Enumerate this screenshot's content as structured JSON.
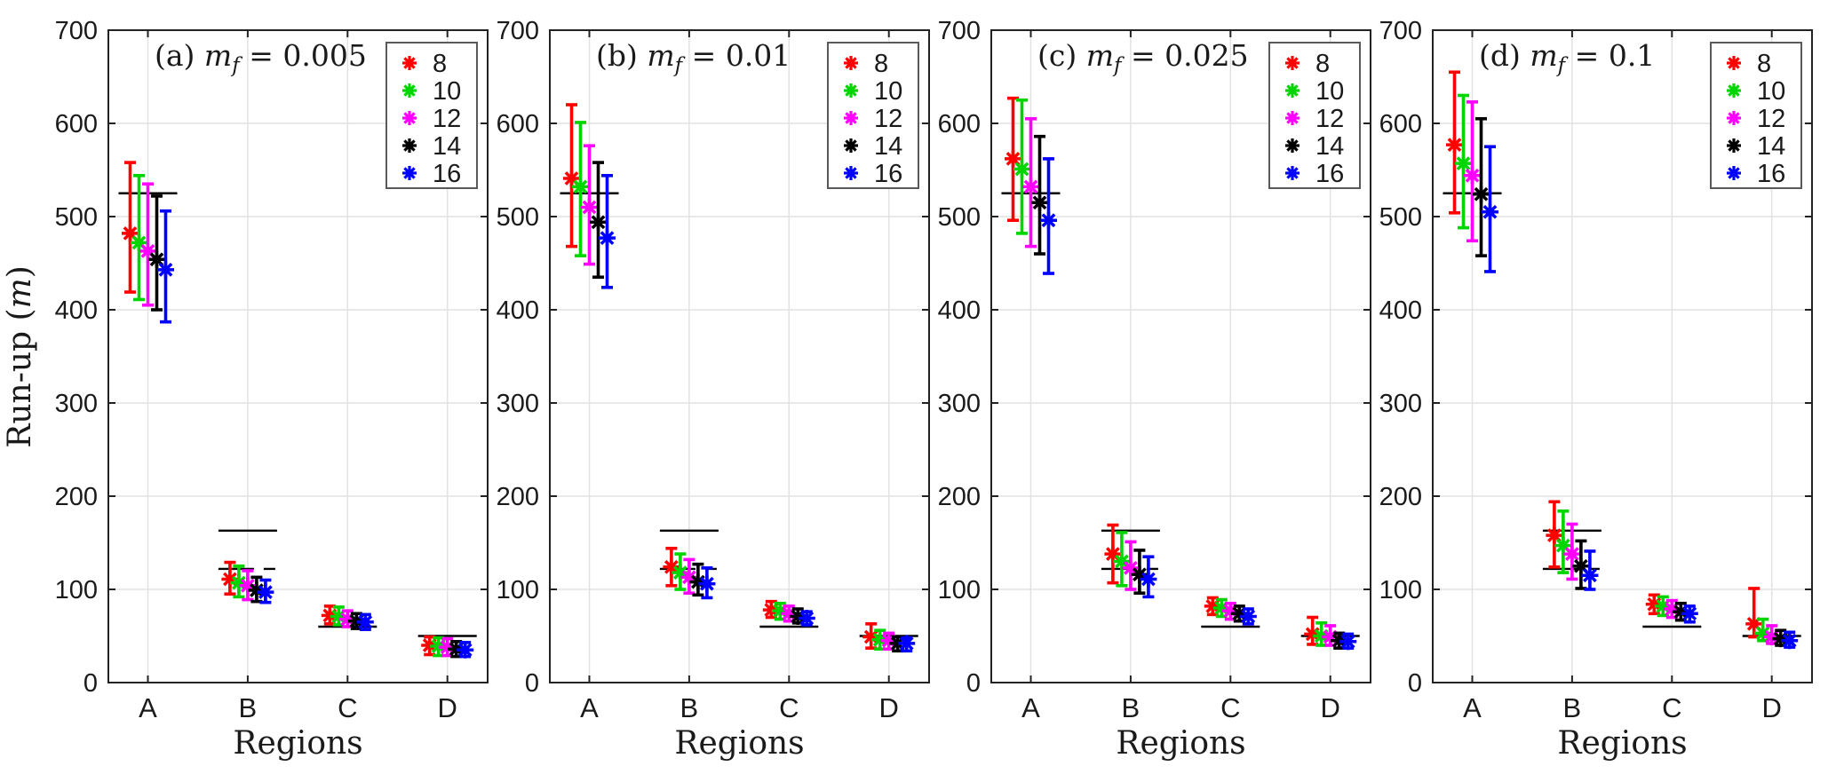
{
  "figure": {
    "xlabel": "Regions",
    "ylabel": {
      "text": "Run-up (m)",
      "prefix": "Run-up (",
      "italic_var": "m",
      "suffix": ")"
    },
    "ylim": [
      0,
      700
    ],
    "yticks": [
      0,
      100,
      200,
      300,
      400,
      500,
      600,
      700
    ],
    "categories": [
      "A",
      "B",
      "C",
      "D"
    ],
    "grid": true,
    "marker": "asterisk",
    "axis_color": "#222222",
    "grid_color": "#e2e2e2",
    "reference_color": "#000000",
    "background": "#ffffff",
    "legend": {
      "position": "top-right-inside",
      "border_color": "#595959",
      "entries": [
        {
          "label": "8",
          "color": "#ff0000"
        },
        {
          "label": "10",
          "color": "#00d500"
        },
        {
          "label": "12",
          "color": "#ff00ff"
        },
        {
          "label": "14",
          "color": "#000000"
        },
        {
          "label": "16",
          "color": "#0000ff"
        }
      ]
    },
    "reference_lines": [
      {
        "category": "A",
        "value": 525,
        "style": "solid"
      },
      {
        "category": "B",
        "value": 163,
        "style": "solid"
      },
      {
        "category": "B",
        "value": 122,
        "style": "dashed"
      },
      {
        "category": "C",
        "value": 60,
        "style": "solid"
      },
      {
        "category": "D",
        "value": 50,
        "style": "solid"
      }
    ]
  },
  "chart_data": [
    {
      "id": "a",
      "type": "scatter-errorbar",
      "title_text": "(a) m_f = 0.005",
      "title": {
        "label": "(a)",
        "var": "m",
        "sub": "f",
        "eq": "= 0.005"
      },
      "categories": [
        "A",
        "B",
        "C",
        "D"
      ],
      "series": [
        {
          "name": "8",
          "color": "#ff0000",
          "means": [
            482,
            111,
            72,
            40
          ],
          "err_lo": [
            419,
            95,
            63,
            30
          ],
          "err_hi": [
            558,
            129,
            82,
            49
          ]
        },
        {
          "name": "10",
          "color": "#00d500",
          "means": [
            472,
            107,
            71,
            39
          ],
          "err_lo": [
            411,
            92,
            62,
            29
          ],
          "err_hi": [
            544,
            125,
            81,
            48
          ]
        },
        {
          "name": "12",
          "color": "#ff00ff",
          "means": [
            463,
            104,
            68,
            38
          ],
          "err_lo": [
            405,
            89,
            60,
            29
          ],
          "err_hi": [
            535,
            120,
            77,
            47
          ]
        },
        {
          "name": "14",
          "color": "#000000",
          "means": [
            454,
            99,
            66,
            36
          ],
          "err_lo": [
            400,
            87,
            58,
            28
          ],
          "err_hi": [
            522,
            113,
            74,
            44
          ]
        },
        {
          "name": "16",
          "color": "#0000ff",
          "means": [
            443,
            97,
            65,
            35
          ],
          "err_lo": [
            387,
            86,
            57,
            28
          ],
          "err_hi": [
            506,
            110,
            73,
            43
          ]
        }
      ]
    },
    {
      "id": "b",
      "type": "scatter-errorbar",
      "title_text": "(b) m_f = 0.01",
      "title": {
        "label": "(b)",
        "var": "m",
        "sub": "f",
        "eq": "= 0.01"
      },
      "categories": [
        "A",
        "B",
        "C",
        "D"
      ],
      "series": [
        {
          "name": "8",
          "color": "#ff0000",
          "means": [
            541,
            124,
            78,
            49
          ],
          "err_lo": [
            468,
            104,
            70,
            37
          ],
          "err_hi": [
            620,
            144,
            87,
            63
          ]
        },
        {
          "name": "10",
          "color": "#00d500",
          "means": [
            532,
            118,
            77,
            46
          ],
          "err_lo": [
            458,
            100,
            68,
            36
          ],
          "err_hi": [
            601,
            138,
            85,
            56
          ]
        },
        {
          "name": "12",
          "color": "#ff00ff",
          "means": [
            510,
            113,
            74,
            45
          ],
          "err_lo": [
            449,
            96,
            66,
            36
          ],
          "err_hi": [
            576,
            132,
            82,
            53
          ]
        },
        {
          "name": "14",
          "color": "#000000",
          "means": [
            494,
            108,
            71,
            42
          ],
          "err_lo": [
            435,
            94,
            64,
            34
          ],
          "err_hi": [
            558,
            127,
            79,
            49
          ]
        },
        {
          "name": "16",
          "color": "#0000ff",
          "means": [
            477,
            106,
            69,
            42
          ],
          "err_lo": [
            424,
            91,
            62,
            34
          ],
          "err_hi": [
            544,
            123,
            76,
            48
          ]
        }
      ]
    },
    {
      "id": "c",
      "type": "scatter-errorbar",
      "title_text": "(c) m_f = 0.025",
      "title": {
        "label": "(c)",
        "var": "m",
        "sub": "f",
        "eq": "= 0.025"
      },
      "categories": [
        "A",
        "B",
        "C",
        "D"
      ],
      "series": [
        {
          "name": "8",
          "color": "#ff0000",
          "means": [
            562,
            138,
            82,
            52
          ],
          "err_lo": [
            496,
            107,
            73,
            41
          ],
          "err_hi": [
            627,
            169,
            91,
            70
          ]
        },
        {
          "name": "10",
          "color": "#00d500",
          "means": [
            551,
            130,
            80,
            50
          ],
          "err_lo": [
            482,
            104,
            71,
            40
          ],
          "err_hi": [
            625,
            161,
            89,
            64
          ]
        },
        {
          "name": "12",
          "color": "#ff00ff",
          "means": [
            532,
            123,
            77,
            49
          ],
          "err_lo": [
            468,
            100,
            68,
            40
          ],
          "err_hi": [
            605,
            151,
            85,
            61
          ]
        },
        {
          "name": "14",
          "color": "#000000",
          "means": [
            515,
            116,
            74,
            45
          ],
          "err_lo": [
            460,
            96,
            66,
            37
          ],
          "err_hi": [
            586,
            142,
            82,
            53
          ]
        },
        {
          "name": "16",
          "color": "#0000ff",
          "means": [
            496,
            111,
            71,
            44
          ],
          "err_lo": [
            439,
            92,
            63,
            37
          ],
          "err_hi": [
            562,
            135,
            79,
            52
          ]
        }
      ]
    },
    {
      "id": "d",
      "type": "scatter-errorbar",
      "title_text": "(d) m_f = 0.1",
      "title": {
        "label": "(d)",
        "var": "m",
        "sub": "f",
        "eq": "= 0.1"
      },
      "categories": [
        "A",
        "B",
        "C",
        "D"
      ],
      "series": [
        {
          "name": "8",
          "color": "#ff0000",
          "means": [
            577,
            158,
            84,
            63
          ],
          "err_lo": [
            504,
            124,
            74,
            49
          ],
          "err_hi": [
            655,
            194,
            94,
            101
          ]
        },
        {
          "name": "10",
          "color": "#00d500",
          "means": [
            557,
            147,
            82,
            53
          ],
          "err_lo": [
            488,
            118,
            72,
            45
          ],
          "err_hi": [
            630,
            184,
            92,
            68
          ]
        },
        {
          "name": "12",
          "color": "#ff00ff",
          "means": [
            544,
            138,
            79,
            49
          ],
          "err_lo": [
            474,
            111,
            70,
            42
          ],
          "err_hi": [
            623,
            170,
            88,
            61
          ]
        },
        {
          "name": "14",
          "color": "#000000",
          "means": [
            524,
            125,
            76,
            47
          ],
          "err_lo": [
            458,
            101,
            67,
            40
          ],
          "err_hi": [
            605,
            152,
            85,
            56
          ]
        },
        {
          "name": "16",
          "color": "#0000ff",
          "means": [
            505,
            115,
            74,
            45
          ],
          "err_lo": [
            441,
            100,
            65,
            38
          ],
          "err_hi": [
            575,
            141,
            82,
            54
          ]
        }
      ]
    }
  ]
}
